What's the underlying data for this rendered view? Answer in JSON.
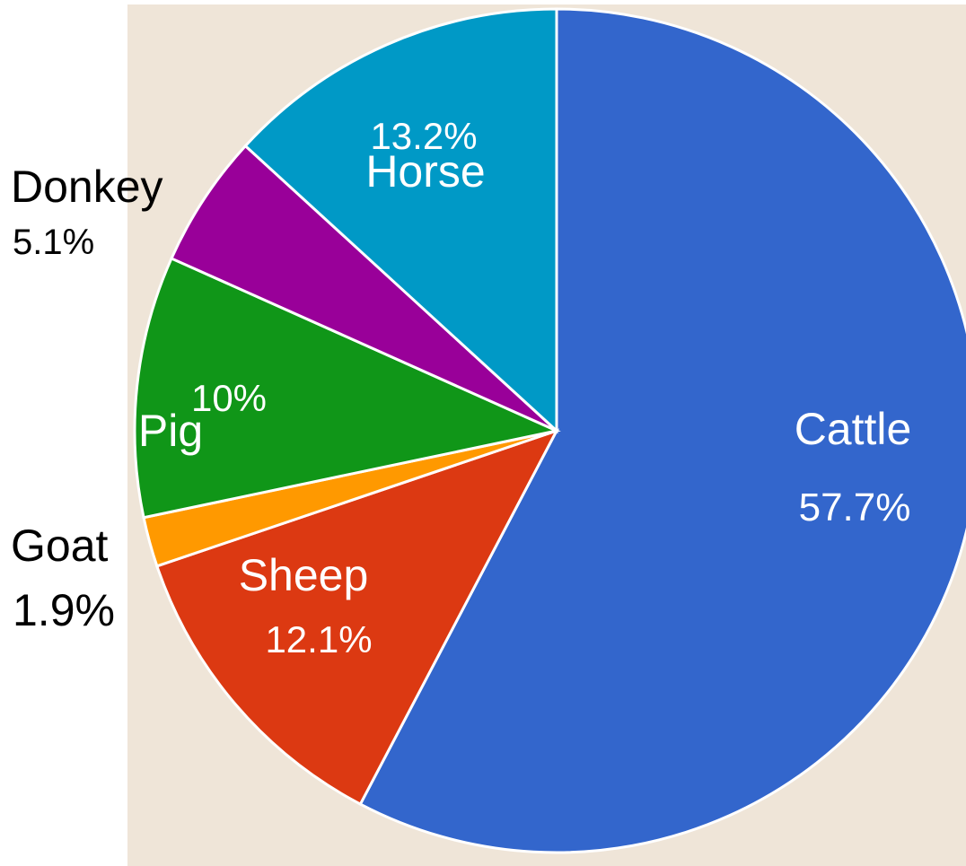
{
  "colors": {
    "plot_background": "#efe5d8",
    "slice_border": "#ffffff"
  },
  "chart_data": {
    "type": "pie",
    "slices": [
      {
        "label": "Cattle",
        "value_label": "57.7%",
        "value": 57.7,
        "color": "#3366cc",
        "label_color": "#ffffff",
        "label_placement": "inside"
      },
      {
        "label": "Sheep",
        "value_label": "12.1%",
        "value": 12.1,
        "color": "#dc3912",
        "label_color": "#ffffff",
        "label_placement": "inside"
      },
      {
        "label": "Goat",
        "value_label": "1.9%",
        "value": 1.9,
        "color": "#ff9900",
        "label_color": "#000000",
        "label_placement": "outside"
      },
      {
        "label": "Pig",
        "value_label": "10%",
        "value": 10.0,
        "color": "#109618",
        "label_color": "#ffffff",
        "label_placement": "inside"
      },
      {
        "label": "Donkey",
        "value_label": "5.1%",
        "value": 5.1,
        "color": "#990099",
        "label_color": "#000000",
        "label_placement": "outside"
      },
      {
        "label": "Horse",
        "value_label": "13.2%",
        "value": 13.2,
        "color": "#0099c6",
        "label_color": "#ffffff",
        "label_placement": "inside"
      }
    ],
    "start_angle": "top",
    "direction": "clockwise"
  }
}
